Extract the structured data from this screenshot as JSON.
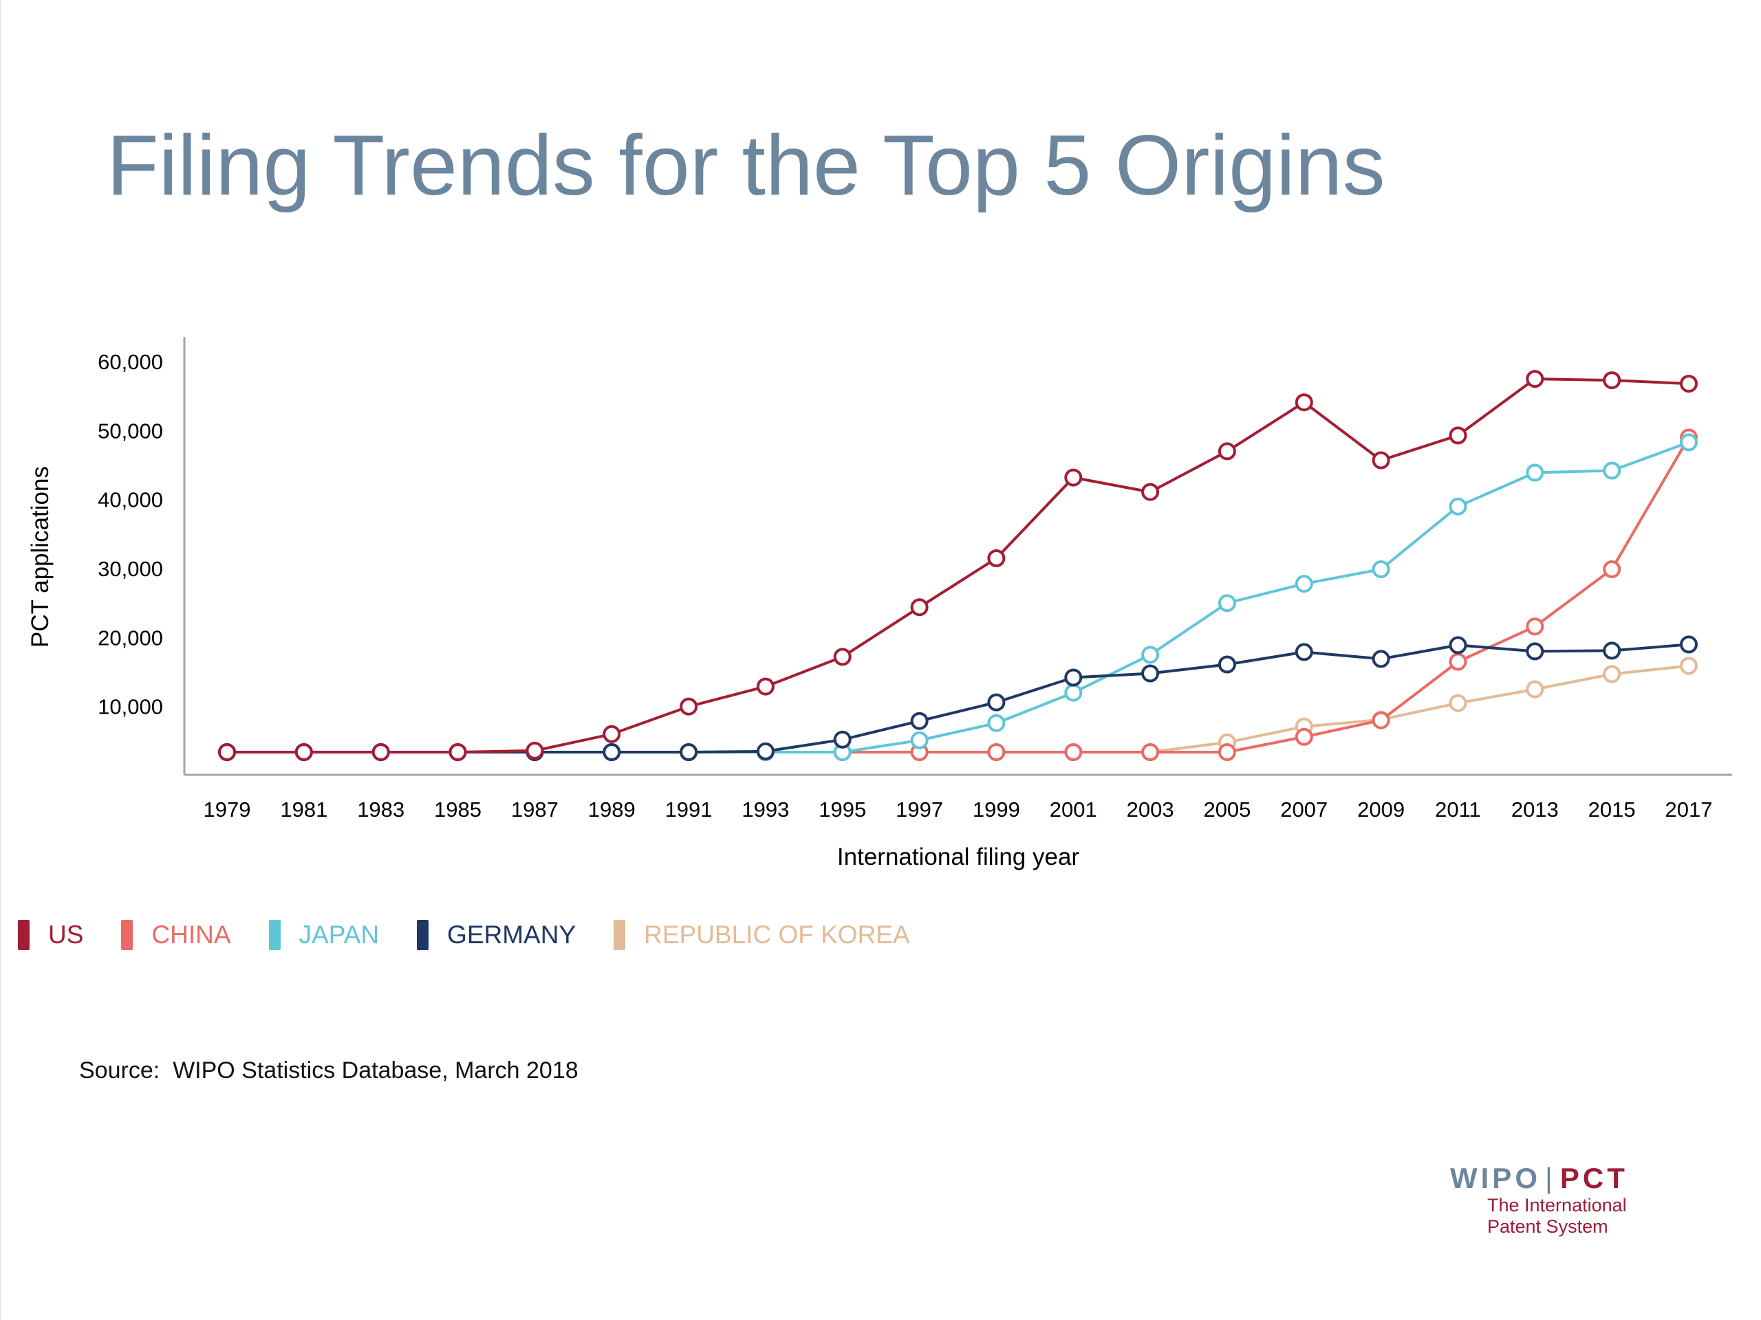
{
  "slide": {
    "title": "Filing Trends for the Top 5 Origins",
    "source": "Source:  WIPO Statistics Database, March 2018",
    "brand": {
      "wipo": "WIPO",
      "separator": "|",
      "pct": "PCT",
      "tagline_1": "The International",
      "tagline_2": "Patent System"
    }
  },
  "chart_data": {
    "type": "line",
    "xlabel": "International filing year",
    "ylabel": "PCT applications",
    "ylim": [
      0,
      60000
    ],
    "yticks": [
      10000,
      20000,
      30000,
      40000,
      50000,
      60000
    ],
    "ytick_labels": [
      "10,000",
      "20,000",
      "30,000",
      "40,000",
      "50,000",
      "60,000"
    ],
    "grid": false,
    "legend_position": "bottom-left",
    "x": [
      "1979",
      "1981",
      "1983",
      "1985",
      "1987",
      "1989",
      "1991",
      "1993",
      "1995",
      "1997",
      "1999",
      "2001",
      "2003",
      "2005",
      "2007",
      "2009",
      "2011",
      "2013",
      "2015",
      "2017"
    ],
    "series": [
      {
        "name": "US",
        "color": "#a41d34",
        "values": [
          1200,
          1700,
          2000,
          2600,
          3500,
          5900,
          9900,
          12800,
          17100,
          24300,
          31400,
          43100,
          41000,
          46900,
          54000,
          45600,
          49200,
          57400,
          57200,
          56700
        ]
      },
      {
        "name": "CHINA",
        "color": "#ea6b64",
        "values": [
          0,
          0,
          0,
          0,
          0,
          0,
          0,
          0,
          100,
          200,
          300,
          1700,
          1200,
          2500,
          5500,
          7900,
          16400,
          21500,
          29800,
          48900
        ]
      },
      {
        "name": "JAPAN",
        "color": "#5fc6d8",
        "values": [
          200,
          300,
          400,
          500,
          700,
          1200,
          1800,
          2000,
          2800,
          5000,
          7500,
          11900,
          17400,
          24900,
          27700,
          29800,
          38900,
          43800,
          44100,
          48200
        ]
      },
      {
        "name": "GERMANY",
        "color": "#1f3864",
        "values": [
          500,
          600,
          700,
          1000,
          1100,
          2000,
          2800,
          3400,
          5100,
          7800,
          10500,
          14100,
          14700,
          16000,
          17800,
          16800,
          18800,
          17900,
          18000,
          18900
        ]
      },
      {
        "name": "REPUBLIC OF KOREA",
        "color": "#e2bb96",
        "values": [
          0,
          0,
          0,
          0,
          0,
          0,
          0,
          0,
          200,
          300,
          900,
          2300,
          2900,
          4700,
          7000,
          8000,
          10400,
          12400,
          14600,
          15800
        ]
      }
    ]
  }
}
